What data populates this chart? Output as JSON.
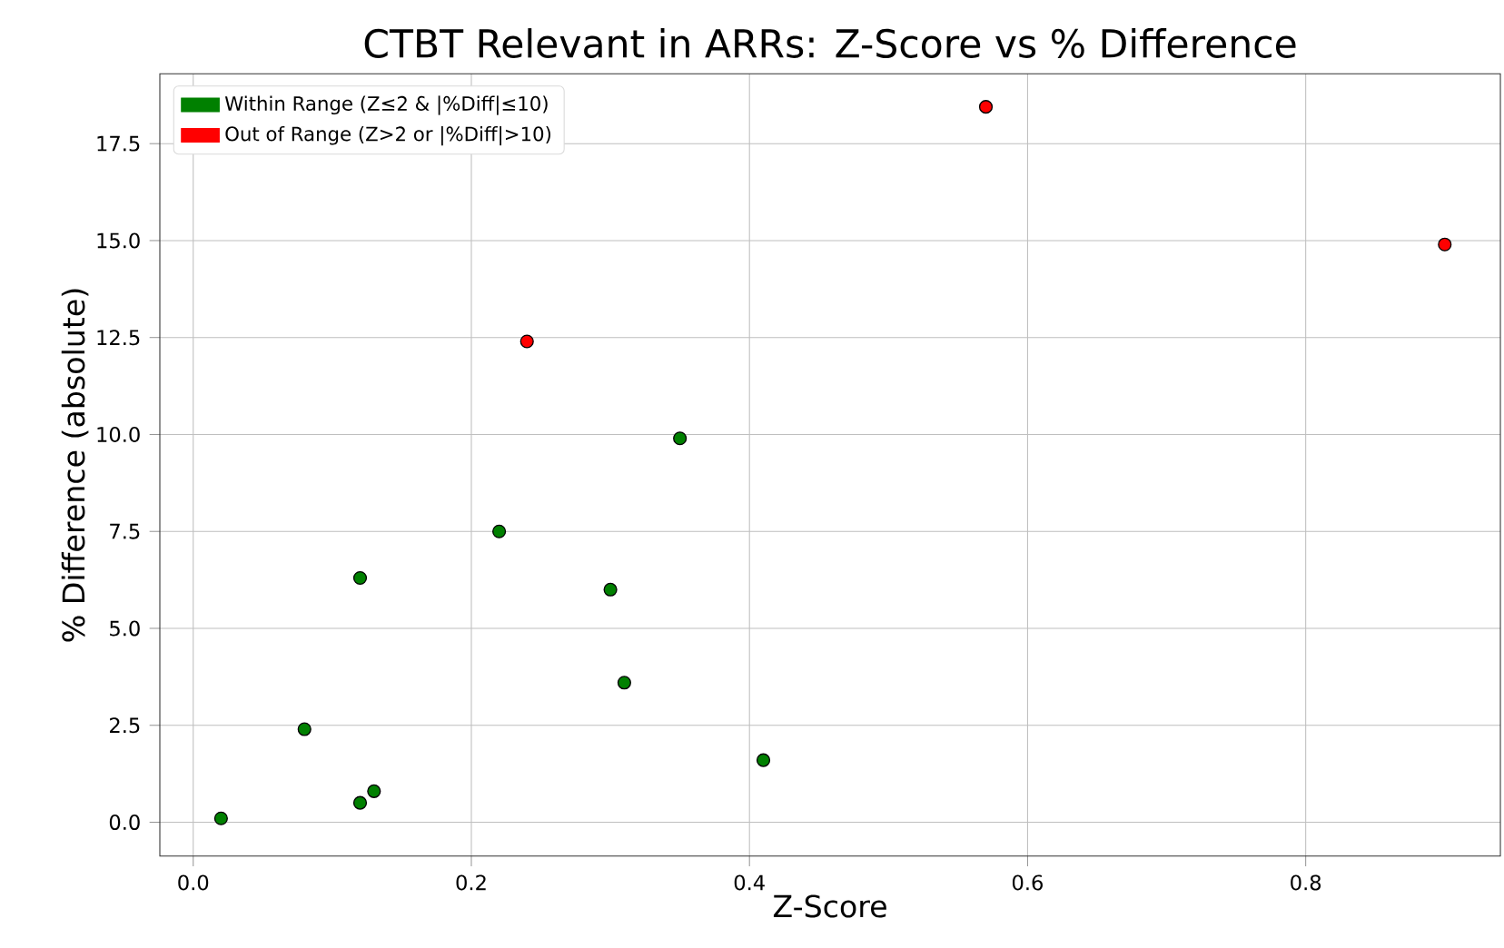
{
  "chart_data": {
    "type": "scatter",
    "title": "CTBT Relevant in ARRs: Z-Score vs % Difference",
    "xlabel": "Z-Score",
    "ylabel": "% Difference (absolute)",
    "series": [
      {
        "name": "Within Range (Z≤2 & |%Diff|≤10)",
        "color": "#008000",
        "x": [
          0.02,
          0.08,
          0.12,
          0.12,
          0.13,
          0.22,
          0.3,
          0.31,
          0.35,
          0.41
        ],
        "values": [
          0.1,
          2.4,
          6.3,
          0.5,
          0.8,
          7.5,
          6.0,
          3.6,
          9.9,
          1.6
        ]
      },
      {
        "name": "Out of Range (Z>2 or |%Diff|>10)",
        "color": "#ff0000",
        "x": [
          0.24,
          0.57,
          0.9
        ],
        "values": [
          12.4,
          18.45,
          14.9
        ]
      }
    ],
    "xlim": [
      -0.024,
      0.94
    ],
    "ylim": [
      -0.87,
      19.3
    ],
    "xticks": [
      {
        "value": 0,
        "label": "0.0"
      },
      {
        "value": 0.2,
        "label": "0.2"
      },
      {
        "value": 0.4,
        "label": "0.4"
      },
      {
        "value": 0.6,
        "label": "0.6"
      },
      {
        "value": 0.8,
        "label": "0.8"
      }
    ],
    "yticks": [
      {
        "value": 0,
        "label": "0.0"
      },
      {
        "value": 2.5,
        "label": "2.5"
      },
      {
        "value": 5,
        "label": "5.0"
      },
      {
        "value": 7.5,
        "label": "7.5"
      },
      {
        "value": 10,
        "label": "10.0"
      },
      {
        "value": 12.5,
        "label": "12.5"
      },
      {
        "value": 15,
        "label": "15.0"
      },
      {
        "value": 17.5,
        "label": "17.5"
      }
    ],
    "grid": true,
    "legend": "top left",
    "marker": "circle"
  }
}
